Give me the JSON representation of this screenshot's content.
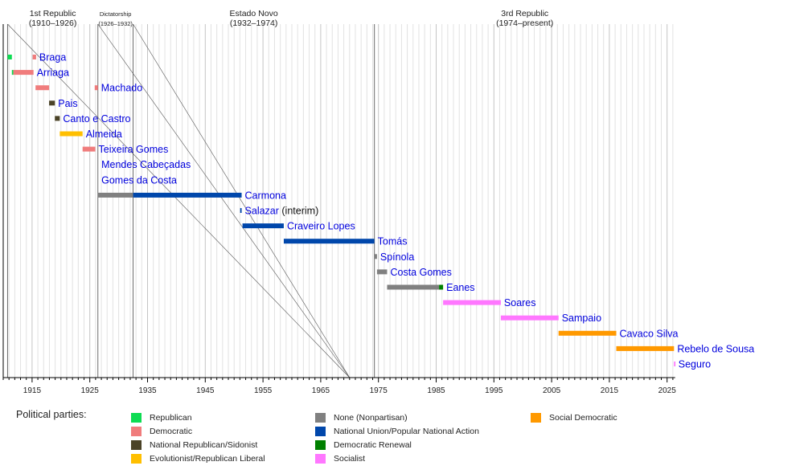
{
  "chart_data": {
    "type": "bar",
    "orientation": "horizontal-timeline",
    "title": "",
    "xlabel": "",
    "ylabel": "",
    "xlim": [
      1910,
      2026.4
    ],
    "x_ticks": [
      1915,
      1925,
      1935,
      1945,
      1955,
      1965,
      1975,
      1985,
      1995,
      2005,
      2015,
      2025
    ],
    "x_tick_labels": [
      "1915",
      "1925",
      "1935",
      "1945",
      "1955",
      "1965",
      "1975",
      "1985",
      "1995",
      "2005",
      "2015",
      "2025"
    ],
    "minor_tick_interval_years": 1,
    "grid": true,
    "eras": [
      {
        "name": "1st Republic",
        "period": "(1910–1926)",
        "start": 1910.76,
        "end": 1926.4
      },
      {
        "name": "Dictatorship",
        "period": "(1926–1932)",
        "start": 1926.4,
        "end": 1932.5
      },
      {
        "name": "Estado Novo",
        "period": "(1932–1974)",
        "start": 1932.5,
        "end": 1974.3
      },
      {
        "name": "3rd Republic",
        "period": "(1974–present)",
        "start": 1974.3,
        "end": 2026.4
      }
    ],
    "connector_lines": [
      {
        "from": 1910.76,
        "to": 1970
      },
      {
        "from": 1926.4,
        "to": 1970
      },
      {
        "from": 1932.5,
        "to": 1970
      }
    ],
    "parties": [
      {
        "key": "republican",
        "name": "Republican",
        "color": "#0ddc52"
      },
      {
        "key": "democratic",
        "name": "Democratic",
        "color": "#f07c7c"
      },
      {
        "key": "sidonist",
        "name": "National Republican/Sidonist",
        "color": "#4b4327"
      },
      {
        "key": "evolutionist",
        "name": "Evolutionist/Republican Liberal",
        "color": "#ffbf00"
      },
      {
        "key": "none",
        "name": "None (Nonpartisan)",
        "color": "#808080"
      },
      {
        "key": "national_union",
        "name": "National Union/Popular National Action",
        "color": "#0047ab"
      },
      {
        "key": "democratic_renewal",
        "name": "Democratic Renewal",
        "color": "#008000"
      },
      {
        "key": "socialist",
        "name": "Socialist",
        "color": "#ff77ff"
      },
      {
        "key": "social_democratic",
        "name": "Social Democratic",
        "color": "#ff9900"
      }
    ],
    "legend": {
      "title": "Political parties:",
      "placement": "bottom",
      "columns": 3
    },
    "presidents": [
      {
        "name": "Braga",
        "bars": [
          {
            "party": "republican",
            "start": 1910.76,
            "end": 1911.5
          },
          {
            "party": "democratic",
            "start": 1915.1,
            "end": 1915.7
          }
        ]
      },
      {
        "name": "Arriaga",
        "bars": [
          {
            "party": "republican",
            "start": 1911.5,
            "end": 1911.75
          },
          {
            "party": "democratic",
            "start": 1911.75,
            "end": 1915.25
          }
        ]
      },
      {
        "name": "Machado",
        "bars": [
          {
            "party": "democratic",
            "start": 1915.6,
            "end": 1917.95
          },
          {
            "party": "democratic",
            "start": 1925.85,
            "end": 1926.4
          }
        ]
      },
      {
        "name": "Pais",
        "bars": [
          {
            "party": "sidonist",
            "start": 1917.95,
            "end": 1918.95
          }
        ]
      },
      {
        "name": "Canto e Castro",
        "bars": [
          {
            "party": "sidonist",
            "start": 1918.95,
            "end": 1919.8
          }
        ]
      },
      {
        "name": "Almeida",
        "bars": [
          {
            "party": "evolutionist",
            "start": 1919.8,
            "end": 1923.75
          }
        ]
      },
      {
        "name": "Teixeira Gomes",
        "bars": [
          {
            "party": "democratic",
            "start": 1923.75,
            "end": 1925.95
          }
        ]
      },
      {
        "name": "Mendes Cabeçadas",
        "bars": [],
        "label_at": 1926.45
      },
      {
        "name": "Gomes da Costa",
        "bars": [],
        "label_at": 1926.45
      },
      {
        "name": "Carmona",
        "bars": [
          {
            "party": "none",
            "start": 1926.4,
            "end": 1932.5
          },
          {
            "party": "national_union",
            "start": 1932.5,
            "end": 1951.3
          }
        ]
      },
      {
        "name": "Salazar",
        "note": " (interim)",
        "bars": [
          {
            "party": "national_union",
            "start": 1951.05,
            "end": 1951.3
          }
        ]
      },
      {
        "name": "Craveiro Lopes",
        "bars": [
          {
            "party": "national_union",
            "start": 1951.45,
            "end": 1958.6
          }
        ]
      },
      {
        "name": "Tomás",
        "bars": [
          {
            "party": "national_union",
            "start": 1958.6,
            "end": 1974.3
          }
        ]
      },
      {
        "name": "Spínola",
        "bars": [
          {
            "party": "none",
            "start": 1974.3,
            "end": 1974.75
          }
        ]
      },
      {
        "name": "Costa Gomes",
        "bars": [
          {
            "party": "none",
            "start": 1974.75,
            "end": 1976.5
          }
        ]
      },
      {
        "name": "Eanes",
        "bars": [
          {
            "party": "none",
            "start": 1976.5,
            "end": 1985.5
          },
          {
            "party": "democratic_renewal",
            "start": 1985.5,
            "end": 1986.2
          }
        ]
      },
      {
        "name": "Soares",
        "bars": [
          {
            "party": "socialist",
            "start": 1986.2,
            "end": 1996.2
          }
        ]
      },
      {
        "name": "Sampaio",
        "bars": [
          {
            "party": "socialist",
            "start": 1996.2,
            "end": 2006.2
          }
        ]
      },
      {
        "name": "Cavaco Silva",
        "bars": [
          {
            "party": "social_democratic",
            "start": 2006.2,
            "end": 2016.2
          }
        ]
      },
      {
        "name": "Rebelo de Sousa",
        "bars": [
          {
            "party": "social_democratic",
            "start": 2016.2,
            "end": 2026.2
          }
        ]
      },
      {
        "name": "Seguro",
        "bars": [
          {
            "party": "socialist",
            "start": 2026.2,
            "end": 2026.4
          }
        ]
      }
    ]
  }
}
